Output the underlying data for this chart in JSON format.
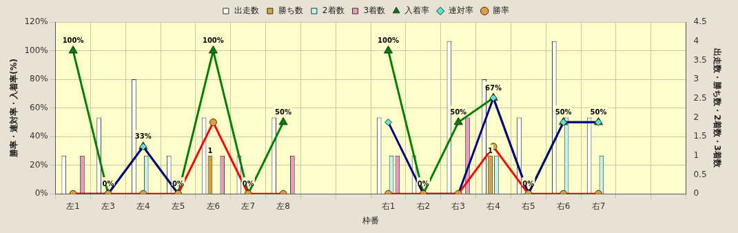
{
  "chart_data": {
    "type": "bar",
    "xlabel": "枠番",
    "ylabel": "勝率・連対率・入着率(%)",
    "y2label": "出走数・勝ち数・2着数・3着数",
    "categories": [
      "左1",
      "左3",
      "左4",
      "左5",
      "左6",
      "左7",
      "左8",
      null,
      null,
      "右1",
      "右2",
      "右3",
      "右4",
      "右5",
      "右6",
      "右7",
      null,
      null
    ],
    "series": [
      {
        "name": "出走数",
        "axis": "y2",
        "color": "#ffffff",
        "values": [
          1,
          2,
          3,
          1,
          2,
          1,
          2,
          null,
          null,
          2,
          1,
          4,
          3,
          2,
          4,
          2,
          null,
          null
        ]
      },
      {
        "name": "勝ち数",
        "axis": "y2",
        "color": "#d4a040",
        "values": [
          0,
          0,
          0,
          0,
          1,
          0,
          0,
          null,
          null,
          0,
          0,
          0,
          1,
          0,
          0,
          0,
          null,
          null
        ],
        "value_labels": [
          null,
          null,
          null,
          null,
          "1",
          null,
          null,
          null,
          null,
          null,
          null,
          null,
          "1",
          null,
          null,
          null,
          null,
          null
        ]
      },
      {
        "name": "2着数",
        "axis": "y2",
        "color": "#c0f4f0",
        "values": [
          0,
          0,
          1,
          0,
          0,
          0,
          0,
          null,
          null,
          1,
          0,
          0,
          1,
          0,
          2,
          1,
          null,
          null
        ]
      },
      {
        "name": "3着数",
        "axis": "y2",
        "color": "#e898c0",
        "values": [
          1,
          0,
          0,
          0,
          1,
          0,
          1,
          null,
          null,
          1,
          0,
          2,
          0,
          0,
          0,
          0,
          null,
          null
        ]
      },
      {
        "name": "入着率",
        "type": "line",
        "marker": "triangle",
        "color": "#008000",
        "values": [
          100,
          0,
          33,
          0,
          100,
          0,
          50,
          null,
          null,
          100,
          0,
          50,
          67,
          0,
          50,
          50,
          null,
          null
        ],
        "value_labels": [
          "100%",
          "0%",
          "33%",
          "0%",
          "100%",
          "0%",
          "50%",
          null,
          null,
          "100%",
          "0%",
          "50%",
          "67%",
          "0%",
          "50%",
          "50%",
          null,
          null
        ]
      },
      {
        "name": "連対率",
        "type": "line",
        "marker": "diamond",
        "color": "#000080",
        "values": [
          0,
          0,
          33,
          0,
          null,
          null,
          null,
          null,
          null,
          50,
          0,
          0,
          67,
          0,
          50,
          50,
          null,
          null
        ]
      },
      {
        "name": "勝率",
        "type": "line",
        "marker": "circle",
        "color": "#ff0000",
        "values": [
          0,
          0,
          0,
          0,
          50,
          0,
          0,
          null,
          null,
          0,
          0,
          0,
          33,
          0,
          0,
          0,
          null,
          null
        ]
      }
    ],
    "ylim": [
      0,
      120
    ],
    "yticks": [
      {
        "value": 0,
        "label": "0%"
      },
      {
        "value": 20,
        "label": "20%"
      },
      {
        "value": 40,
        "label": "40%"
      },
      {
        "value": 60,
        "label": "60%"
      },
      {
        "value": 80,
        "label": "80%"
      },
      {
        "value": 100,
        "label": "100%"
      },
      {
        "value": 120,
        "label": "120%"
      }
    ],
    "y2lim": [
      0,
      4.5
    ],
    "y2ticks": [
      0,
      0.5,
      1,
      1.5,
      2,
      2.5,
      3,
      3.5,
      4,
      4.5
    ],
    "grid": true,
    "legend": "top"
  }
}
